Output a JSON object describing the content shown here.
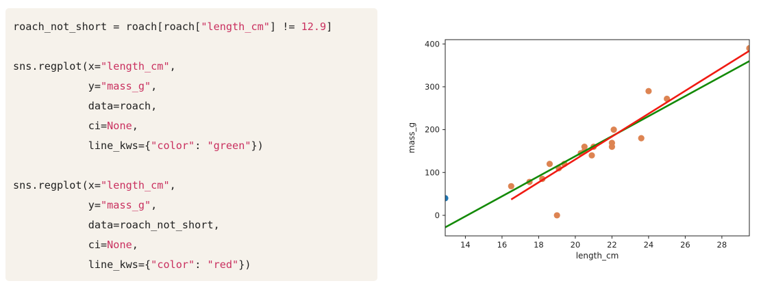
{
  "code_cell": {
    "lines": [
      [
        {
          "t": "roach_not_short = roach[roach["
        },
        {
          "t": "\"length_cm\"",
          "c": "str"
        },
        {
          "t": "] != "
        },
        {
          "t": "12.9",
          "c": "num"
        },
        {
          "t": "]"
        }
      ],
      [],
      [
        {
          "t": "sns.regplot(x="
        },
        {
          "t": "\"length_cm\"",
          "c": "str"
        },
        {
          "t": ","
        }
      ],
      [
        {
          "t": "            y="
        },
        {
          "t": "\"mass_g\"",
          "c": "str"
        },
        {
          "t": ","
        }
      ],
      [
        {
          "t": "            data=roach,"
        }
      ],
      [
        {
          "t": "            ci="
        },
        {
          "t": "None",
          "c": "kw"
        },
        {
          "t": ","
        }
      ],
      [
        {
          "t": "            line_kws={"
        },
        {
          "t": "\"color\"",
          "c": "str"
        },
        {
          "t": ": "
        },
        {
          "t": "\"green\"",
          "c": "str"
        },
        {
          "t": "})"
        }
      ],
      [],
      [
        {
          "t": "sns.regplot(x="
        },
        {
          "t": "\"length_cm\"",
          "c": "str"
        },
        {
          "t": ","
        }
      ],
      [
        {
          "t": "            y="
        },
        {
          "t": "\"mass_g\"",
          "c": "str"
        },
        {
          "t": ","
        }
      ],
      [
        {
          "t": "            data=roach_not_short,"
        }
      ],
      [
        {
          "t": "            ci="
        },
        {
          "t": "None",
          "c": "kw"
        },
        {
          "t": ","
        }
      ],
      [
        {
          "t": "            line_kws={"
        },
        {
          "t": "\"color\"",
          "c": "str"
        },
        {
          "t": ": "
        },
        {
          "t": "\"red\"",
          "c": "str"
        },
        {
          "t": "})"
        }
      ]
    ]
  },
  "chart_data": {
    "type": "scatter",
    "xlabel": "length_cm",
    "ylabel": "mass_g",
    "xlim": [
      12.9,
      29.5
    ],
    "ylim": [
      -48,
      410
    ],
    "xticks": [
      14,
      16,
      18,
      20,
      22,
      24,
      26,
      28
    ],
    "yticks": [
      0,
      100,
      200,
      300,
      400
    ],
    "series": [
      {
        "color": "#1f77b4",
        "points": [
          [
            12.9,
            40
          ]
        ]
      },
      {
        "color": "#dd8452",
        "points": [
          [
            16.5,
            68
          ],
          [
            17.5,
            78
          ],
          [
            18.2,
            85
          ],
          [
            18.6,
            120
          ],
          [
            19.0,
            0
          ],
          [
            19.1,
            110
          ],
          [
            19.4,
            120
          ],
          [
            20.3,
            145
          ],
          [
            20.5,
            160
          ],
          [
            20.5,
            150
          ],
          [
            20.9,
            140
          ],
          [
            21.0,
            160
          ],
          [
            22.0,
            160
          ],
          [
            22.0,
            169
          ],
          [
            22.1,
            200
          ],
          [
            23.6,
            180
          ],
          [
            24.0,
            290
          ],
          [
            25.0,
            272
          ],
          [
            29.5,
            390
          ]
        ]
      }
    ],
    "lines": [
      {
        "color": "green",
        "x": [
          12.9,
          29.5
        ],
        "y": [
          -28,
          360
        ]
      },
      {
        "color": "red",
        "x": [
          16.5,
          29.5
        ],
        "y": [
          37,
          384
        ]
      }
    ]
  }
}
